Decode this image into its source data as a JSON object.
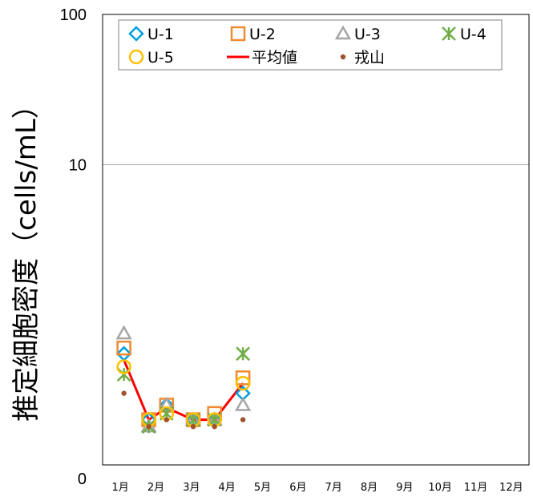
{
  "chart_data": {
    "type": "line",
    "ylabel": "推定細胞密度（cells/mL）",
    "yticks": [
      "100",
      "10",
      "0"
    ],
    "xticks": [
      "1月",
      "2月",
      "3月",
      "4月",
      "5月",
      "6月",
      "7月",
      "8月",
      "9月",
      "10月",
      "11月",
      "12月"
    ],
    "x_range": [
      1,
      13
    ],
    "y_range_log": [
      0.1,
      100
    ],
    "grid": "horizontal",
    "legend_position": "top",
    "series": [
      {
        "name": "U-1",
        "marker": "diamond",
        "color": "#00a0e0",
        "x": [
          1.6,
          2.3,
          2.8,
          3.55,
          4.15,
          4.95
        ],
        "y": [
          0.55,
          0.2,
          0.25,
          0.2,
          0.2,
          0.3
        ]
      },
      {
        "name": "U-2",
        "marker": "square",
        "color": "#f08a32",
        "x": [
          1.6,
          2.3,
          2.8,
          3.55,
          4.15,
          4.95
        ],
        "y": [
          0.6,
          0.2,
          0.25,
          0.2,
          0.22,
          0.38
        ]
      },
      {
        "name": "U-3",
        "marker": "triangle",
        "color": "#a6a6a6",
        "x": [
          1.6,
          2.3,
          2.8,
          3.55,
          4.15,
          4.95
        ],
        "y": [
          0.75,
          0.18,
          0.25,
          0.2,
          0.2,
          0.25
        ]
      },
      {
        "name": "U-4",
        "marker": "asterisk",
        "color": "#70ad47",
        "x": [
          1.6,
          2.3,
          2.8,
          3.55,
          4.15,
          4.95
        ],
        "y": [
          0.4,
          0.18,
          0.22,
          0.2,
          0.2,
          0.55
        ]
      },
      {
        "name": "U-5",
        "marker": "circle",
        "color": "#ffc000",
        "x": [
          1.6,
          2.3,
          2.8,
          3.55,
          4.15,
          4.95
        ],
        "y": [
          0.45,
          0.2,
          0.22,
          0.2,
          0.2,
          0.35
        ]
      },
      {
        "name": "平均値",
        "marker": "line",
        "color": "#ff0000",
        "x": [
          1.6,
          2.3,
          2.8,
          3.55,
          4.15,
          4.95
        ],
        "y": [
          0.5,
          0.2,
          0.24,
          0.2,
          0.2,
          0.35
        ]
      },
      {
        "name": "戎山",
        "marker": "dot",
        "color": "#a0522d",
        "x": [
          1.6,
          2.3,
          2.8,
          3.55,
          4.15,
          4.95
        ],
        "y": [
          0.3,
          0.18,
          0.2,
          0.18,
          0.18,
          0.2
        ]
      }
    ]
  }
}
